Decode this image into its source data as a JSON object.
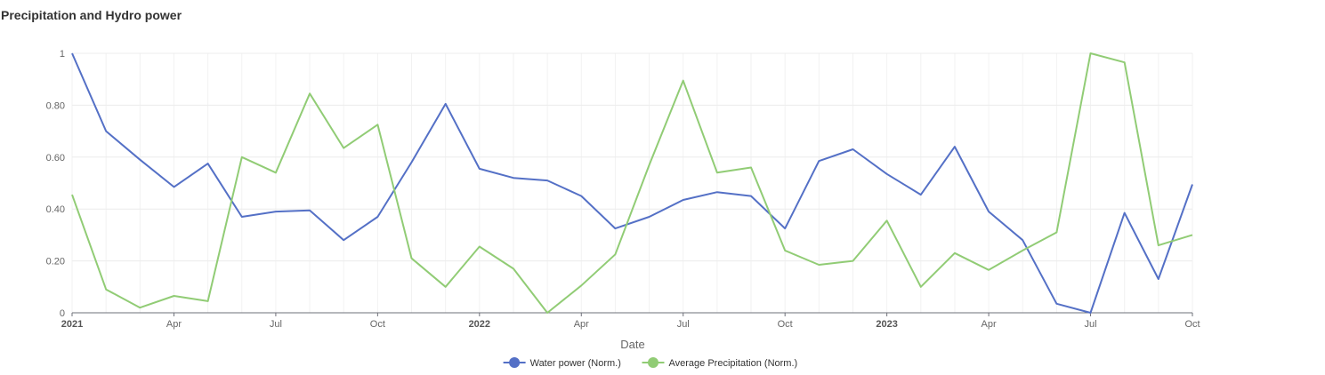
{
  "title": "Precipitation and Hydro power",
  "chart_data": {
    "type": "line",
    "title": "Precipitation and Hydro power",
    "xlabel": "Date",
    "ylabel": "",
    "ylim": [
      0,
      1
    ],
    "y_ticks": [
      {
        "value": 0,
        "label": "0"
      },
      {
        "value": 0.2,
        "label": "0.20"
      },
      {
        "value": 0.4,
        "label": "0.40"
      },
      {
        "value": 0.6,
        "label": "0.60"
      },
      {
        "value": 0.8,
        "label": "0.80"
      },
      {
        "value": 1,
        "label": "1"
      }
    ],
    "x_ticks": [
      {
        "date": "2021-01",
        "label": "2021",
        "bold": true
      },
      {
        "date": "2021-04",
        "label": "Apr",
        "bold": false
      },
      {
        "date": "2021-07",
        "label": "Jul",
        "bold": false
      },
      {
        "date": "2021-10",
        "label": "Oct",
        "bold": false
      },
      {
        "date": "2022-01",
        "label": "2022",
        "bold": true
      },
      {
        "date": "2022-04",
        "label": "Apr",
        "bold": false
      },
      {
        "date": "2022-07",
        "label": "Jul",
        "bold": false
      },
      {
        "date": "2022-10",
        "label": "Oct",
        "bold": false
      },
      {
        "date": "2023-01",
        "label": "2023",
        "bold": true
      },
      {
        "date": "2023-04",
        "label": "Apr",
        "bold": false
      },
      {
        "date": "2023-07",
        "label": "Jul",
        "bold": false
      },
      {
        "date": "2023-10",
        "label": "Oct",
        "bold": false
      }
    ],
    "x": [
      "2021-01",
      "2021-02",
      "2021-03",
      "2021-04",
      "2021-05",
      "2021-06",
      "2021-07",
      "2021-08",
      "2021-09",
      "2021-10",
      "2021-11",
      "2021-12",
      "2022-01",
      "2022-02",
      "2022-03",
      "2022-04",
      "2022-05",
      "2022-06",
      "2022-07",
      "2022-08",
      "2022-09",
      "2022-10",
      "2022-11",
      "2022-12",
      "2023-01",
      "2023-02",
      "2023-03",
      "2023-04",
      "2023-05",
      "2023-06",
      "2023-07",
      "2023-08",
      "2023-09",
      "2023-10"
    ],
    "series": [
      {
        "name": "Water power (Norm.)",
        "color": "#5470c6",
        "values": [
          1.0,
          0.7,
          0.59,
          0.485,
          0.575,
          0.37,
          0.39,
          0.395,
          0.28,
          0.37,
          0.58,
          0.805,
          0.555,
          0.52,
          0.51,
          0.45,
          0.325,
          0.37,
          0.435,
          0.465,
          0.45,
          0.325,
          0.585,
          0.63,
          0.535,
          0.455,
          0.64,
          0.39,
          0.28,
          0.035,
          0.0,
          0.385,
          0.13,
          0.495
        ]
      },
      {
        "name": "Average Precipitation (Norm.)",
        "color": "#91cc75",
        "values": [
          0.455,
          0.09,
          0.02,
          0.065,
          0.045,
          0.6,
          0.54,
          0.845,
          0.635,
          0.725,
          0.21,
          0.1,
          0.255,
          0.17,
          0.0,
          0.105,
          0.225,
          0.57,
          0.895,
          0.54,
          0.56,
          0.24,
          0.185,
          0.2,
          0.355,
          0.1,
          0.23,
          0.165,
          0.24,
          0.31,
          1.0,
          0.965,
          0.26,
          0.3
        ]
      }
    ],
    "grid": true,
    "legend": "bottom-center"
  }
}
